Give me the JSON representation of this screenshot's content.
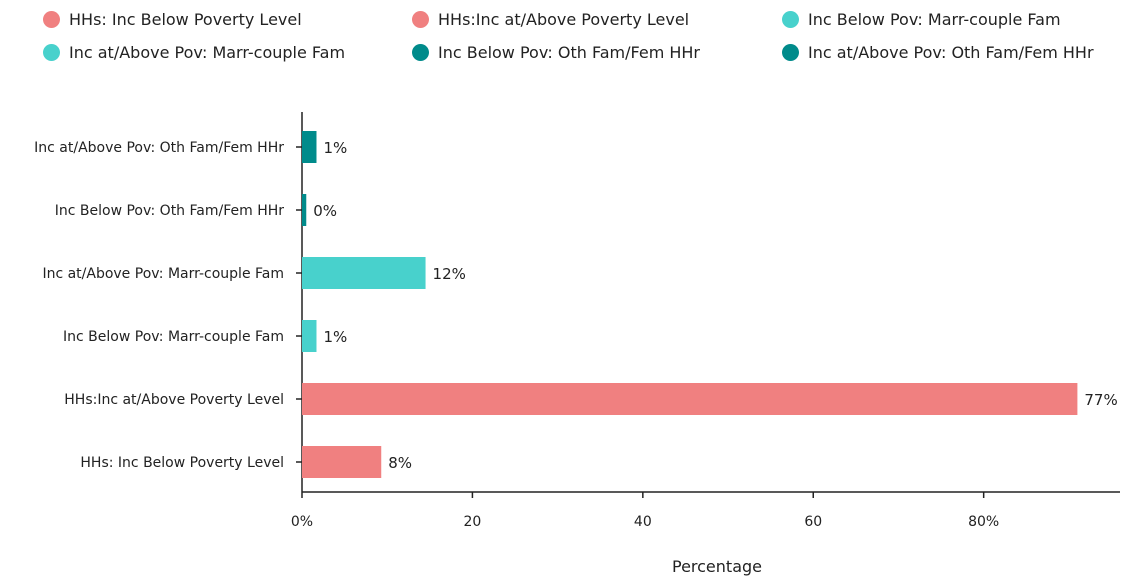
{
  "chart_data": {
    "type": "bar",
    "orientation": "horizontal",
    "title": "",
    "xlabel": "Percentage",
    "ylabel": "",
    "xlim": [
      0,
      96
    ],
    "x_ticks": [
      0,
      20,
      40,
      60,
      80
    ],
    "x_tick_labels": [
      "0%",
      "20",
      "40",
      "60",
      "80%"
    ],
    "legend_placement": "top",
    "grid": false,
    "categories": [
      "HHs: Inc Below Poverty Level",
      "HHs:Inc at/Above Poverty Level",
      "Inc Below Pov: Marr-couple Fam",
      "Inc at/Above Pov: Marr-couple Fam",
      "Inc Below Pov: Oth Fam/Fem HHr",
      "Inc at/Above Pov: Oth Fam/Fem HHr"
    ],
    "values": [
      9.3,
      91,
      1.7,
      14.5,
      0.5,
      1.7
    ],
    "value_labels": [
      "8%",
      "77%",
      "1%",
      "12%",
      "0%",
      "1%"
    ],
    "colors": [
      "#f08080",
      "#f08080",
      "#48d1cc",
      "#48d1cc",
      "#008b8b",
      "#008b8b"
    ],
    "legend": [
      {
        "label": "HHs: Inc Below Poverty Level",
        "color": "#f08080"
      },
      {
        "label": "HHs:Inc at/Above Poverty Level",
        "color": "#f08080"
      },
      {
        "label": "Inc Below Pov: Marr-couple Fam",
        "color": "#48d1cc"
      },
      {
        "label": "Inc at/Above Pov: Marr-couple Fam",
        "color": "#48d1cc"
      },
      {
        "label": "Inc Below Pov: Oth Fam/Fem HHr",
        "color": "#008b8b"
      },
      {
        "label": "Inc at/Above Pov: Oth Fam/Fem HHr",
        "color": "#008b8b"
      }
    ]
  }
}
